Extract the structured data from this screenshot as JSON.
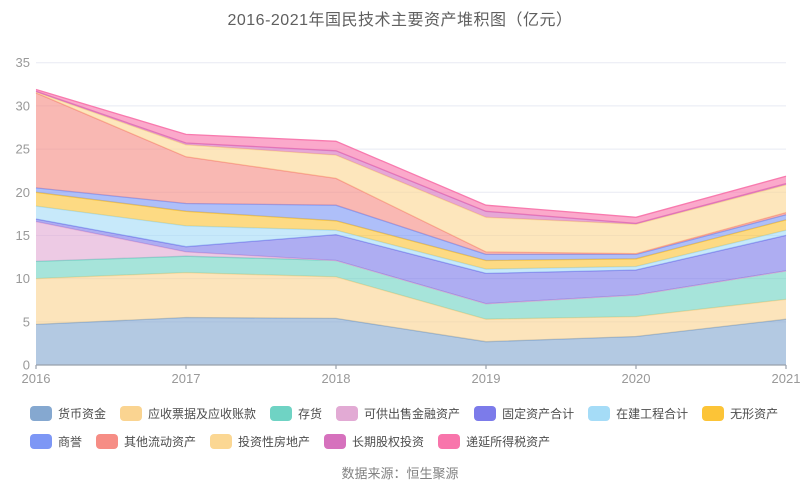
{
  "page": {
    "title": "2016-2021年国民技术主要资产堆积图（亿元）",
    "source": "数据来源：恒生聚源"
  },
  "chart_data": {
    "type": "area",
    "stacked": true,
    "title": "2016-2021年国民技术主要资产堆积图（亿元）",
    "unit": "亿元",
    "x": [
      2016,
      2017,
      2018,
      2019,
      2020,
      2021
    ],
    "ylim": [
      0,
      35
    ],
    "yticks": [
      0,
      5,
      10,
      15,
      20,
      25,
      30,
      35
    ],
    "grid": true,
    "legend_position": "bottom",
    "legend_rows": [
      7,
      5
    ],
    "axis_color": "#98a0ab",
    "label_color": "#999999",
    "grid_color": "#e8eaf3",
    "series": [
      {
        "name": "货币资金",
        "color": "#85a8d0",
        "values": [
          4.7,
          5.5,
          5.4,
          2.7,
          3.3,
          5.3
        ]
      },
      {
        "name": "应收票据及应收账款",
        "color": "#fad491",
        "values": [
          5.3,
          5.2,
          4.8,
          2.6,
          2.3,
          2.3
        ]
      },
      {
        "name": "存货",
        "color": "#6fd3c4",
        "values": [
          2.0,
          1.9,
          1.9,
          1.8,
          2.5,
          3.3
        ]
      },
      {
        "name": "可供出售金融资产",
        "color": "#e2aad4",
        "values": [
          4.6,
          0.5,
          0.0,
          0.0,
          0.0,
          0.0
        ]
      },
      {
        "name": "固定资产合计",
        "color": "#7c7bea",
        "values": [
          0.3,
          0.6,
          3.0,
          3.5,
          2.9,
          4.1
        ]
      },
      {
        "name": "在建工程合计",
        "color": "#a5dcf7",
        "values": [
          1.5,
          2.4,
          0.5,
          0.5,
          0.4,
          0.6
        ]
      },
      {
        "name": "无形资产",
        "color": "#fcc437",
        "values": [
          1.6,
          1.7,
          1.1,
          1.0,
          0.9,
          1.2
        ]
      },
      {
        "name": "商誉",
        "color": "#7d97f5",
        "values": [
          0.5,
          0.9,
          1.8,
          0.7,
          0.5,
          0.6
        ]
      },
      {
        "name": "其他流动资产",
        "color": "#f68d85",
        "values": [
          11.0,
          5.4,
          3.1,
          0.3,
          0.1,
          0.25
        ]
      },
      {
        "name": "投资性房地产",
        "color": "#fbd793",
        "values": [
          0.1,
          1.4,
          2.7,
          4.0,
          3.4,
          3.2
        ]
      },
      {
        "name": "长期股权投资",
        "color": "#d671bd",
        "values": [
          0.1,
          0.2,
          0.5,
          0.7,
          0.1,
          0.15
        ]
      },
      {
        "name": "递延所得税资产",
        "color": "#f875ab",
        "values": [
          0.2,
          1.0,
          1.1,
          0.7,
          0.7,
          0.85
        ]
      }
    ]
  }
}
